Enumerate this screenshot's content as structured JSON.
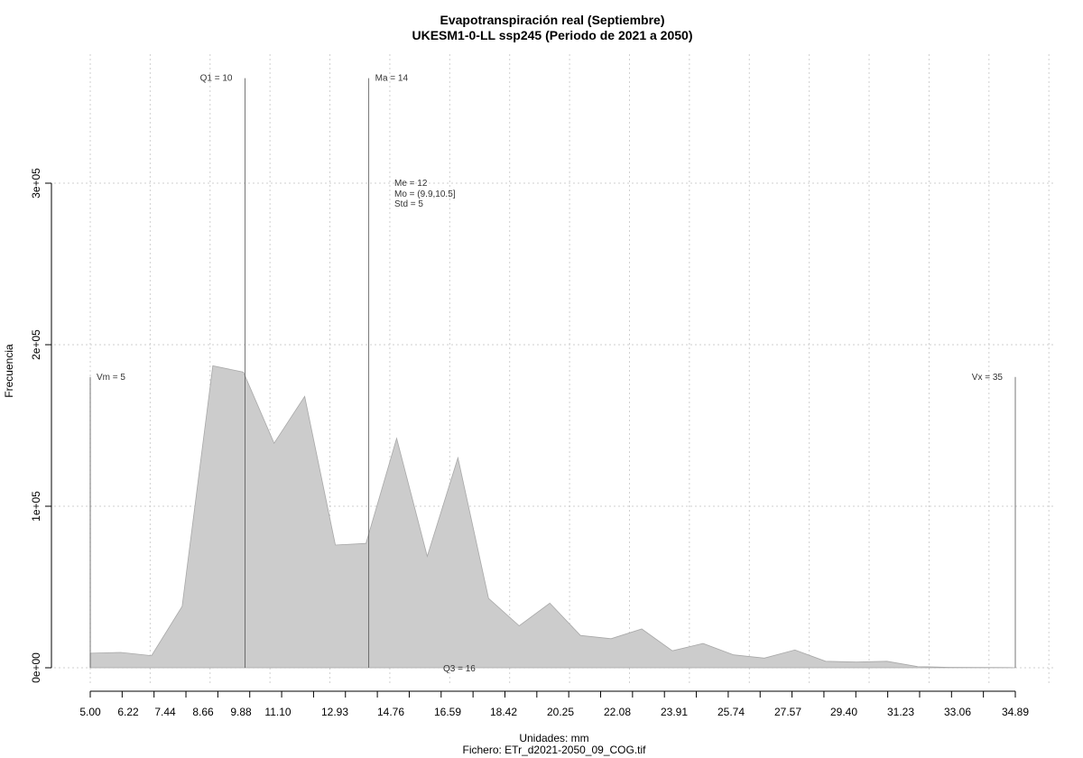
{
  "chart_data": {
    "type": "area",
    "title": "Evapotranspiración real (Septiembre)",
    "subtitle": "UKESM1-0-LL ssp245 (Periodo de 2021 a 2050)",
    "xlabel": "Unidades: mm",
    "ylabel": "Frecuencia",
    "footer": "Fichero: ETr_d2021-2050_09_COG.tif",
    "xlim": [
      5.0,
      34.89
    ],
    "ylim": [
      0,
      300000
    ],
    "x_ticks": [
      "5.00",
      "6.22",
      "7.44",
      "8.66",
      "9.88",
      "11.10",
      "12.93",
      "14.76",
      "16.59",
      "18.42",
      "20.25",
      "22.08",
      "23.91",
      "25.74",
      "27.57",
      "29.40",
      "31.23",
      "33.06",
      "34.89"
    ],
    "y_ticks": [
      {
        "value": 0,
        "label": "0e+00"
      },
      {
        "value": 100000,
        "label": "1e+05"
      },
      {
        "value": 200000,
        "label": "2e+05"
      },
      {
        "value": 300000,
        "label": "3e+05"
      }
    ],
    "grid": true,
    "x": [
      5.0,
      5.99,
      6.98,
      7.97,
      8.96,
      9.95,
      10.94,
      11.93,
      12.92,
      13.91,
      14.9,
      15.89,
      16.88,
      17.87,
      18.86,
      19.85,
      20.84,
      21.83,
      22.82,
      23.81,
      24.8,
      25.79,
      26.78,
      27.77,
      28.76,
      29.75,
      30.74,
      31.73,
      32.72,
      33.71,
      34.7,
      34.89
    ],
    "series": [
      {
        "values": [
          9000,
          9500,
          7500,
          38000,
          187000,
          183000,
          139000,
          168000,
          76000,
          77000,
          142000,
          69000,
          130000,
          43000,
          26000,
          40000,
          20000,
          18000,
          24000,
          10500,
          15000,
          8000,
          6000,
          11000,
          4000,
          3500,
          4000,
          700,
          300,
          200,
          100,
          0
        ],
        "color": "#cccccc"
      }
    ],
    "markers": [
      {
        "value": 5.0,
        "label": "Vm = 5",
        "label_side": "right",
        "label_y": 180000
      },
      {
        "value": 10.0,
        "label": "Q1 = 10",
        "label_side": "left",
        "label_y": 365000
      },
      {
        "value": 14.0,
        "label": "Ma = 14",
        "label_side": "right",
        "label_y": 365000
      },
      {
        "value": 34.89,
        "label": "Vx = 35",
        "label_side": "left",
        "label_y": 180000
      }
    ],
    "stats": [
      "Me = 12",
      "Mo = (9.9,10.5]",
      "Std = 5"
    ],
    "q3_label": "Q3 = 16"
  }
}
